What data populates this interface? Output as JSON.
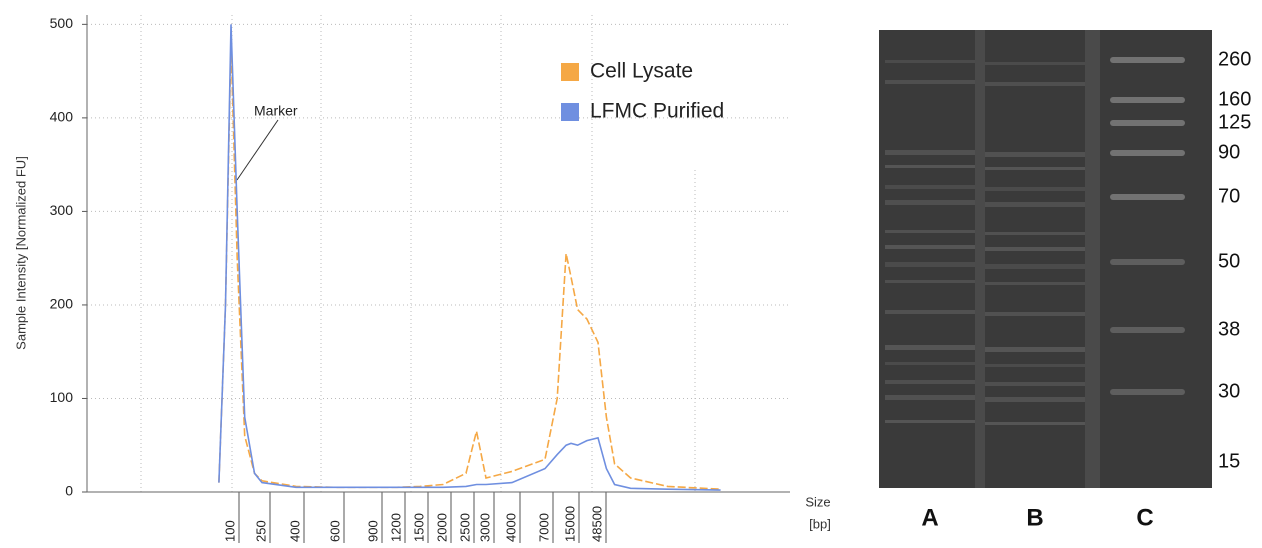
{
  "chart_data": {
    "type": "line",
    "y_label": "Sample Intensity [Normalized FU]",
    "x_label": "Size",
    "x_unit": "[bp]",
    "annotation": "Marker",
    "xticks": [
      100,
      250,
      400,
      600,
      900,
      1200,
      1500,
      2000,
      2500,
      3000,
      4000,
      7000,
      15000,
      48500
    ],
    "x": [
      70,
      85,
      100,
      120,
      150,
      200,
      250,
      400,
      600,
      900,
      1200,
      1500,
      2000,
      2500,
      2750,
      3000,
      4000,
      7000,
      10000,
      13000,
      15000,
      20000,
      30000,
      48500,
      70000,
      100000,
      200000,
      1000000,
      10000000
    ],
    "series": [
      {
        "name": "Cell Lysate",
        "color": "#f5a845",
        "values": [
          10,
          200,
          480,
          250,
          60,
          20,
          12,
          6,
          5,
          5,
          5,
          6,
          8,
          20,
          65,
          15,
          22,
          35,
          100,
          255,
          230,
          195,
          185,
          160,
          80,
          30,
          15,
          6,
          3
        ]
      },
      {
        "name": "LFMC Purified",
        "color": "#6f8fe0",
        "values": [
          10,
          200,
          500,
          300,
          80,
          20,
          10,
          5,
          5,
          5,
          5,
          5,
          5,
          6,
          8,
          8,
          10,
          25,
          40,
          50,
          52,
          50,
          55,
          58,
          25,
          8,
          4,
          3,
          2
        ]
      }
    ],
    "ylim": [
      0,
      510
    ],
    "yticks": [
      0,
      100,
      200,
      300,
      400,
      500
    ],
    "grid": true
  },
  "gel": {
    "lanes": [
      "A",
      "B",
      "C"
    ],
    "ladder": [
      260,
      160,
      125,
      90,
      70,
      50,
      38,
      30,
      15
    ]
  }
}
